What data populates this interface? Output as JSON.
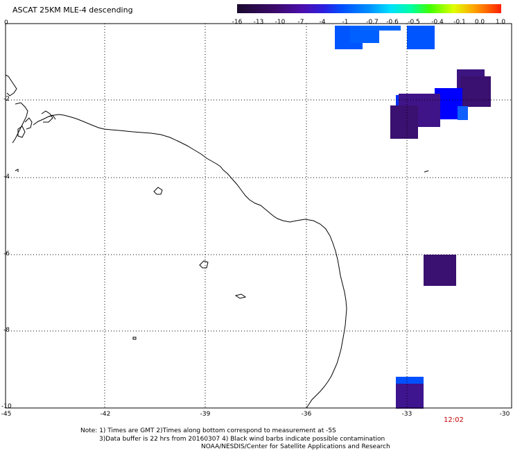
{
  "title": "ASCAT 25KM MLE-4 descending",
  "colorbar": {
    "labels": [
      "-16",
      "-13",
      "-10",
      "-7",
      "-4",
      "-1",
      "-0.7",
      "-0.6",
      "-0.5",
      "-0.4",
      "-0.1",
      "0.0",
      "1.0"
    ],
    "colors": [
      "#1a0a2e",
      "#3d0a6e",
      "#4b0fae",
      "#2a1fe0",
      "#0050ff",
      "#0090ff",
      "#00d0ff",
      "#00ffd0",
      "#00ff60",
      "#a0ff00",
      "#ffff00",
      "#ff9000",
      "#ff2000"
    ]
  },
  "axes": {
    "x_ticks": [
      "-45",
      "-42",
      "-39",
      "-36",
      "-33",
      "-30"
    ],
    "y_ticks": [
      "0",
      "-2",
      "-4",
      "-6",
      "-8",
      "-10"
    ]
  },
  "time_label": "12:02",
  "notes": {
    "line1": "Note: 1) Times are GMT 2)Times along bottom correspond to measurement at -5S",
    "line2": "3)Data buffer is 22 hrs from 20160307 4) Black wind barbs indicate possible contamination",
    "line3": "NOAA/NESDIS/Center for Satellite Applications and Research"
  },
  "colors": {
    "grid": "#000000",
    "background": "#ffffff",
    "deep_purple": "#3a1070",
    "purple": "#4b148f",
    "blue": "#0000ff",
    "light_blue": "#0050ff",
    "time_color": "#c00000"
  }
}
